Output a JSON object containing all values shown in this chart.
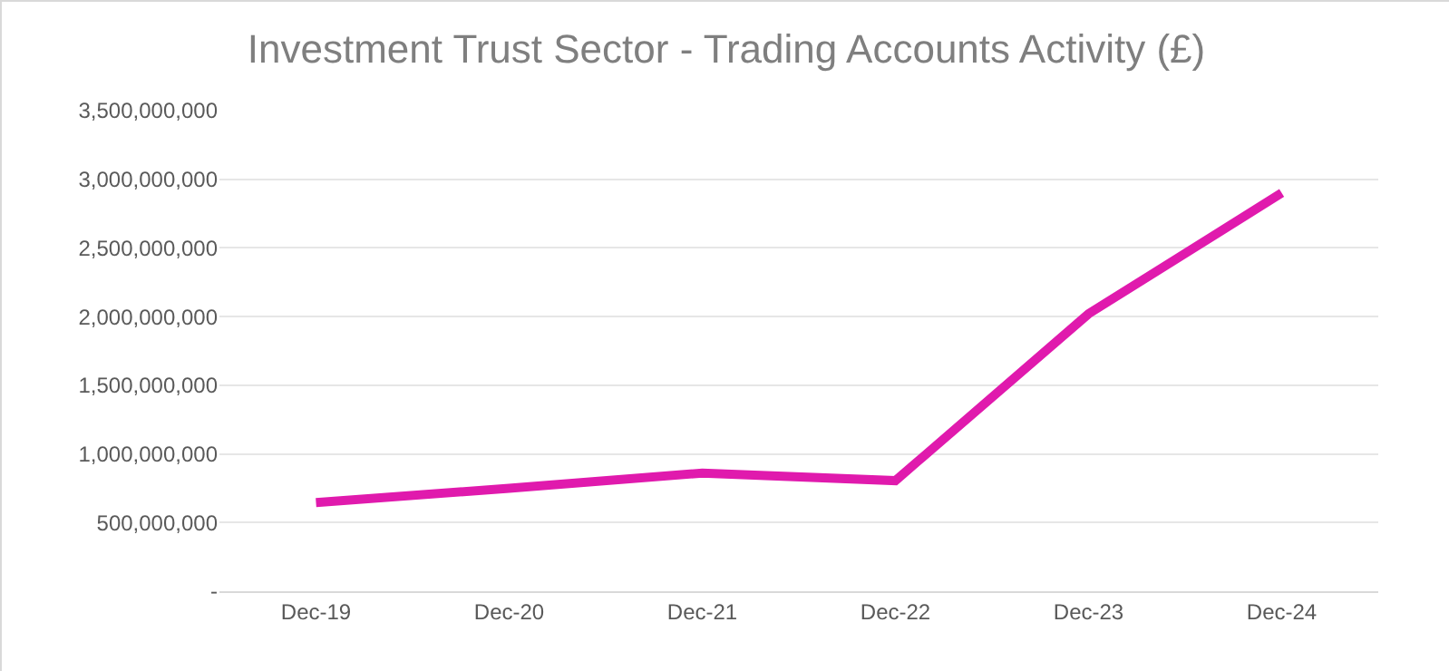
{
  "chart_data": {
    "type": "line",
    "title": "Investment Trust Sector - Trading Accounts Activity (£)",
    "categories": [
      "Dec-19",
      "Dec-20",
      "Dec-21",
      "Dec-22",
      "Dec-23",
      "Dec-24"
    ],
    "series": [
      {
        "color": "#e01aad",
        "values": [
          645000000,
          750000000,
          860000000,
          805000000,
          2020000000,
          2900000000
        ]
      }
    ],
    "ylim": [
      0,
      3500000000
    ],
    "yticks": [
      {
        "value": 0,
        "label": "-"
      },
      {
        "value": 500000000,
        "label": "500,000,000"
      },
      {
        "value": 1000000000,
        "label": "1,000,000,000"
      },
      {
        "value": 1500000000,
        "label": "1,500,000,000"
      },
      {
        "value": 2000000000,
        "label": "2,000,000,000"
      },
      {
        "value": 2500000000,
        "label": "2,500,000,000"
      },
      {
        "value": 3000000000,
        "label": "3,000,000,000"
      },
      {
        "value": 3500000000,
        "label": "3,500,000,000"
      }
    ],
    "grid": "y",
    "legend": false,
    "marker": "none",
    "line_style": "solid"
  }
}
